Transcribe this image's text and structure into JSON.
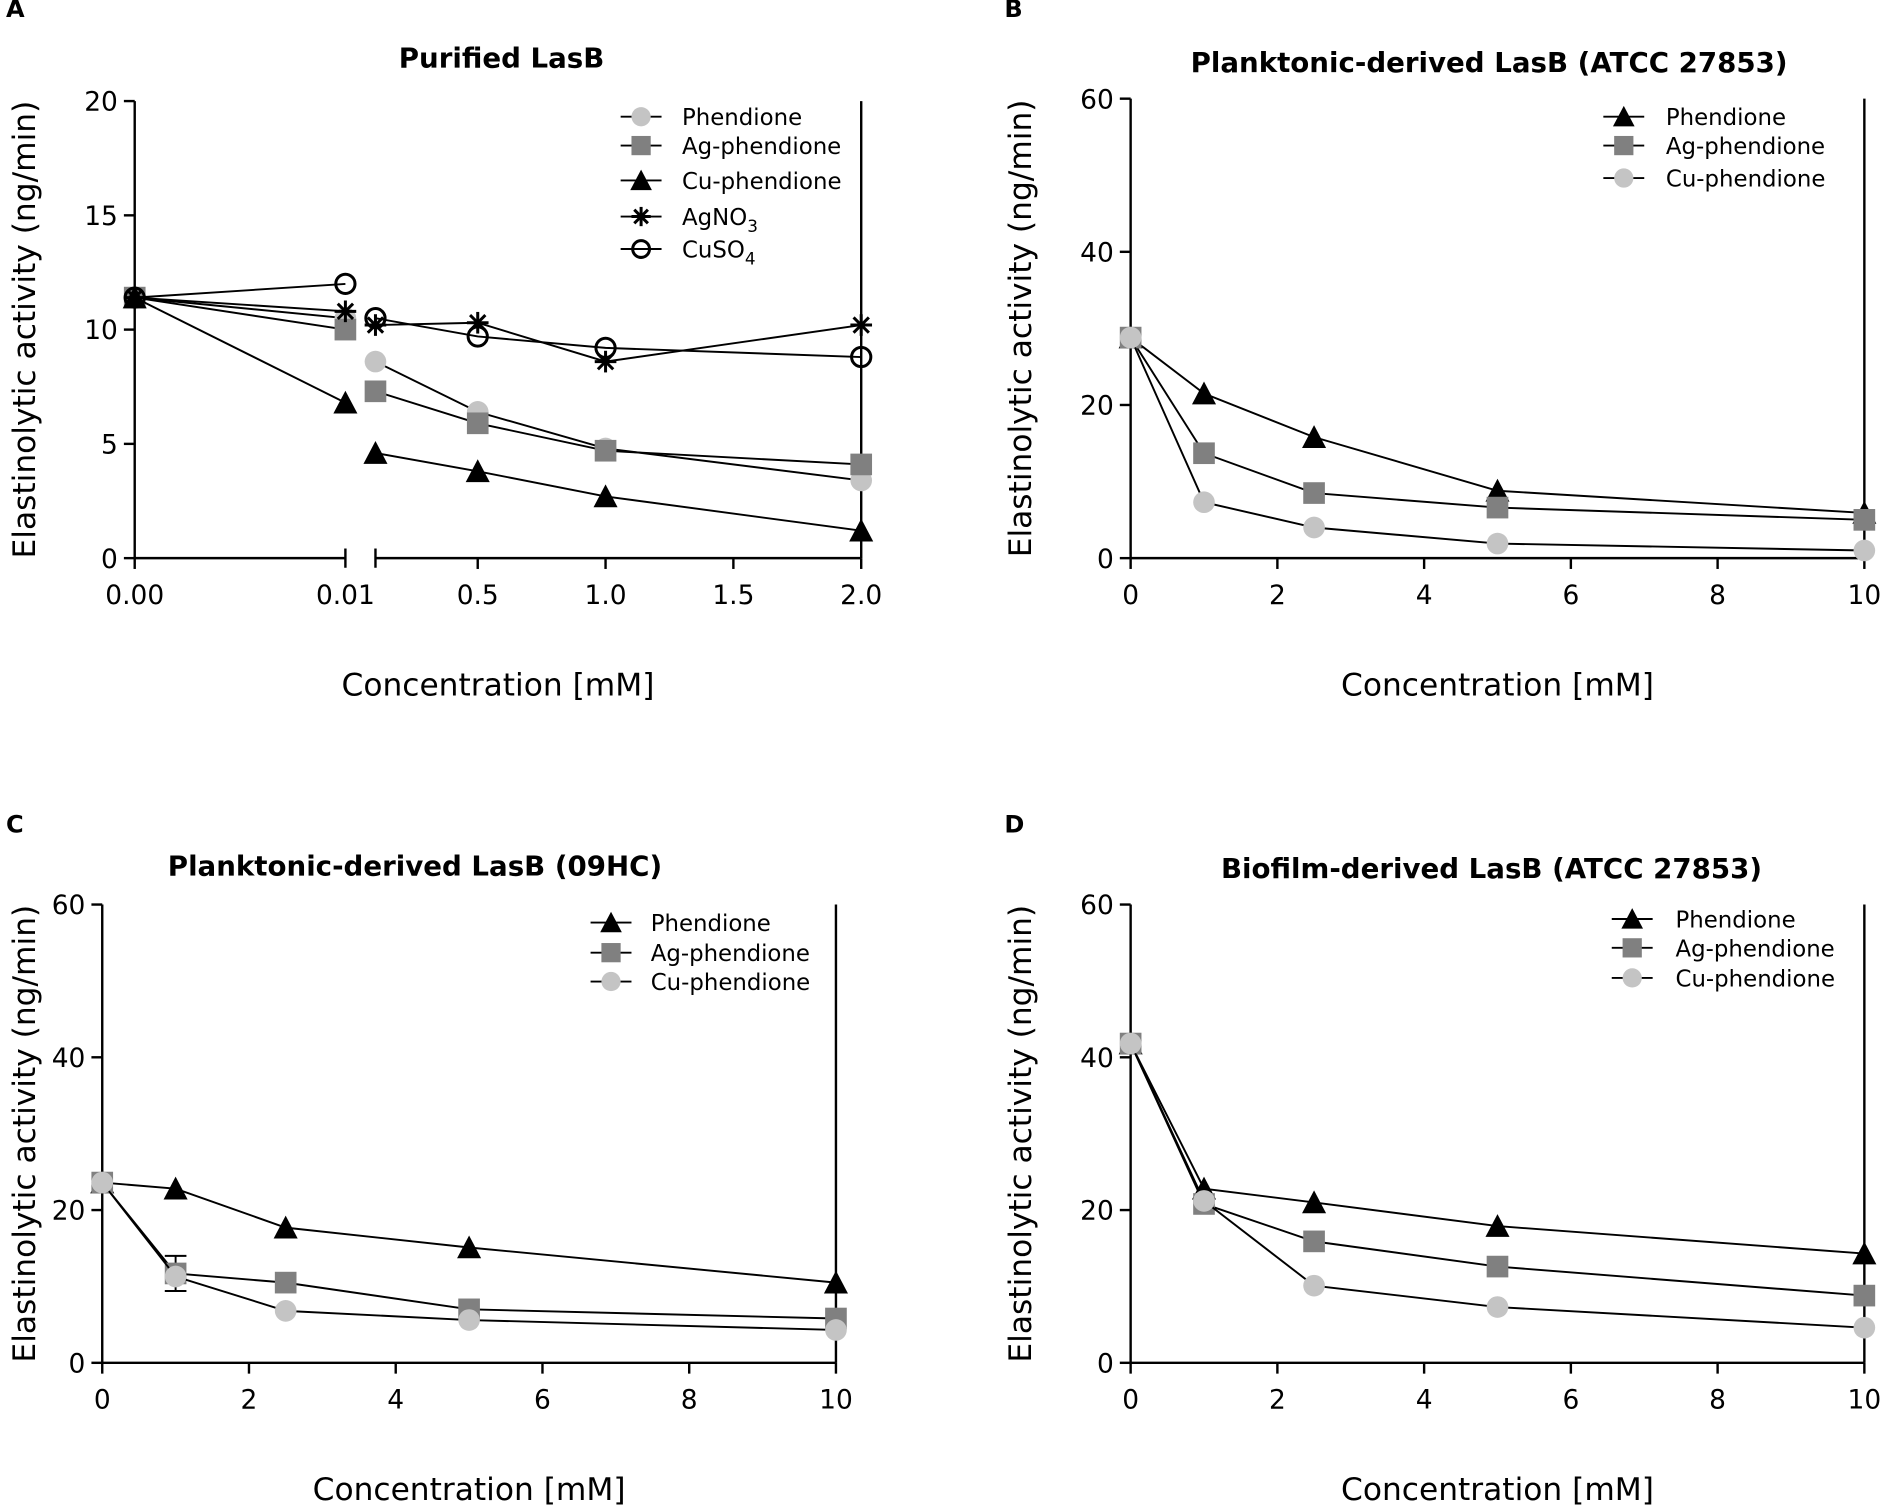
{
  "chart_data": [
    {
      "panel": "A",
      "type": "line",
      "title": "Purified LasB",
      "xlabel": "Concentration [mM]",
      "ylabel": "Elastinolytic activity (ng/min)",
      "ylim": [
        0,
        20
      ],
      "yticks": [
        0,
        5,
        10,
        15,
        20
      ],
      "xticks": [
        0,
        0.01,
        0.5,
        1.0,
        1.5,
        2.0
      ],
      "xtick_labels": [
        "0.00",
        "0.01",
        "0.5",
        "1.0",
        "1.5",
        "2.0"
      ],
      "x_break": [
        0.01,
        0.1
      ],
      "legend_position": "top-right",
      "x": [
        0,
        0.01,
        0.1,
        0.5,
        1.0,
        2.0
      ],
      "series": [
        {
          "name": "Phendione",
          "marker": "circle",
          "color": "#c4c4c4",
          "values": [
            11.4,
            10.5,
            8.6,
            6.4,
            4.8,
            3.4
          ]
        },
        {
          "name": "Ag-phendione",
          "marker": "square",
          "color": "#808080",
          "values": [
            11.4,
            10.0,
            7.3,
            5.9,
            4.7,
            4.1
          ]
        },
        {
          "name": "Cu-phendione",
          "marker": "triangle",
          "color": "#000000",
          "values": [
            11.4,
            6.8,
            4.6,
            3.8,
            2.7,
            1.2
          ]
        },
        {
          "name": "AgNO",
          "subscript": "3",
          "marker": "asterisk",
          "color": "#000000",
          "values": [
            11.4,
            10.8,
            10.2,
            10.3,
            8.6,
            10.2
          ]
        },
        {
          "name": "CuSO",
          "subscript": "4",
          "marker": "open-circle",
          "color": "#000000",
          "values": [
            11.4,
            12.0,
            10.5,
            9.7,
            9.2,
            8.8
          ]
        }
      ]
    },
    {
      "panel": "B",
      "type": "line",
      "title": "Planktonic-derived LasB (ATCC 27853)",
      "xlabel": "Concentration [mM]",
      "ylabel": "Elastinolytic activity (ng/min)",
      "xlim": [
        0,
        10
      ],
      "ylim": [
        0,
        60
      ],
      "xticks": [
        0,
        2,
        4,
        6,
        8,
        10
      ],
      "yticks": [
        0,
        20,
        40,
        60
      ],
      "legend_position": "top-right",
      "x": [
        0,
        1,
        2.5,
        5,
        10
      ],
      "series": [
        {
          "name": "Phendione",
          "marker": "triangle",
          "color": "#000000",
          "values": [
            28.8,
            21.5,
            15.8,
            8.8,
            5.9
          ]
        },
        {
          "name": "Ag-phendione",
          "marker": "square",
          "color": "#808080",
          "values": [
            28.8,
            13.7,
            8.5,
            6.6,
            5.0
          ]
        },
        {
          "name": "Cu-phendione",
          "marker": "circle",
          "color": "#c4c4c4",
          "values": [
            28.8,
            7.3,
            4.0,
            1.9,
            1.0
          ]
        }
      ]
    },
    {
      "panel": "C",
      "type": "line",
      "title": "Planktonic-derived LasB (09HC)",
      "xlabel": "Concentration [mM]",
      "ylabel": "Elastinolytic activity (ng/min)",
      "xlim": [
        0,
        10
      ],
      "ylim": [
        0,
        60
      ],
      "xticks": [
        0,
        2,
        4,
        6,
        8,
        10
      ],
      "yticks": [
        0,
        20,
        40,
        60
      ],
      "legend_position": "top-right",
      "x": [
        0,
        1,
        2.5,
        5,
        10
      ],
      "series": [
        {
          "name": "Phendione",
          "marker": "triangle",
          "color": "#000000",
          "values": [
            23.6,
            22.8,
            17.7,
            15.1,
            10.5
          ]
        },
        {
          "name": "Ag-phendione",
          "marker": "square",
          "color": "#808080",
          "values": [
            23.6,
            11.7,
            10.5,
            7.0,
            5.8
          ],
          "errors": [
            0,
            2.3,
            0,
            0,
            0
          ]
        },
        {
          "name": "Cu-phendione",
          "marker": "circle",
          "color": "#c4c4c4",
          "values": [
            23.6,
            11.3,
            6.8,
            5.6,
            4.3
          ]
        }
      ]
    },
    {
      "panel": "D",
      "type": "line",
      "title": "Biofilm-derived LasB (ATCC 27853)",
      "xlabel": "Concentration [mM]",
      "ylabel": "Elastinolytic activity (ng/min)",
      "xlim": [
        0,
        10
      ],
      "ylim": [
        0,
        60
      ],
      "xticks": [
        0,
        2,
        4,
        6,
        8,
        10
      ],
      "yticks": [
        0,
        20,
        40,
        60
      ],
      "legend_position": "top-right",
      "x": [
        0,
        1,
        2.5,
        5,
        10
      ],
      "series": [
        {
          "name": "Phendione",
          "marker": "triangle",
          "color": "#000000",
          "values": [
            41.8,
            22.8,
            21.0,
            17.9,
            14.3
          ]
        },
        {
          "name": "Ag-phendione",
          "marker": "square",
          "color": "#808080",
          "values": [
            41.8,
            20.8,
            15.9,
            12.6,
            8.8
          ]
        },
        {
          "name": "Cu-phendione",
          "marker": "circle",
          "color": "#c4c4c4",
          "values": [
            41.8,
            21.2,
            10.1,
            7.3,
            4.6
          ]
        }
      ]
    }
  ]
}
